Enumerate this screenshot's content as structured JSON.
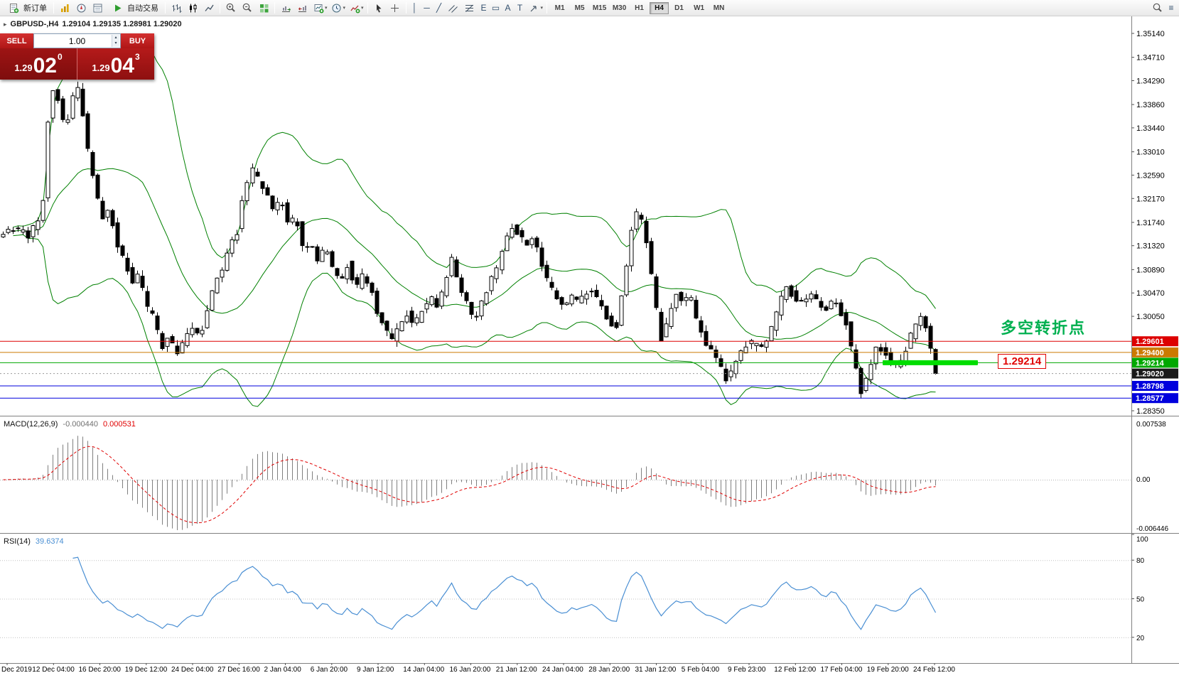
{
  "toolbar": {
    "new_order_label": "新订单",
    "auto_trading_label": "自动交易",
    "timeframes": [
      "M1",
      "M5",
      "M15",
      "M30",
      "H1",
      "H4",
      "D1",
      "W1",
      "MN"
    ],
    "active_timeframe": "H4"
  },
  "icons": {
    "vertical_line": "│",
    "horizontal_line": "─",
    "trendline": "╱",
    "elliott": "E",
    "text": "A",
    "label": "T",
    "shapes": "▭",
    "list": "≡",
    "caret": "▾",
    "spin_up": "▴",
    "spin_down": "▾",
    "chart_menu": "▸"
  },
  "trade_panel": {
    "sell_label": "SELL",
    "buy_label": "BUY",
    "volume": "1.00",
    "sell_price": {
      "small": "1.29",
      "big": "02",
      "sup": "0"
    },
    "buy_price": {
      "small": "1.29",
      "big": "04",
      "sup": "3"
    }
  },
  "chart_header": {
    "symbol": "GBPUSD-,H4",
    "ohlc": "1.29104 1.29135 1.28981 1.29020"
  },
  "chart_data": {
    "type": "candlestick",
    "symbol": "GBPUSD-",
    "timeframe": "H4",
    "ohlc_current": {
      "open": 1.29104,
      "high": 1.29135,
      "low": 1.28981,
      "close": 1.2902
    },
    "price_axis": {
      "ref_high": 1.3514,
      "ref_low": 1.2835,
      "ticks": [
        1.3514,
        1.3471,
        1.3429,
        1.3386,
        1.3344,
        1.3301,
        1.3259,
        1.3217,
        1.3174,
        1.3132,
        1.3089,
        1.3047,
        1.3005,
        1.2835
      ]
    },
    "time_axis": [
      "Dec 2019",
      "12 Dec 04:00",
      "16 Dec 20:00",
      "19 Dec 12:00",
      "24 Dec 04:00",
      "27 Dec 16:00",
      "2 Jan 04:00",
      "6 Jan 20:00",
      "9 Jan 12:00",
      "14 Jan 04:00",
      "16 Jan 20:00",
      "21 Jan 12:00",
      "24 Jan 04:00",
      "28 Jan 20:00",
      "31 Jan 12:00",
      "5 Feb 04:00",
      "9 Feb 23:00",
      "12 Feb 12:00",
      "17 Feb 04:00",
      "19 Feb 20:00",
      "24 Feb 12:00"
    ],
    "levels": [
      {
        "price": 1.29601,
        "label": "1.29601",
        "color": "#dd0000"
      },
      {
        "price": 1.294,
        "label": "1.29400",
        "color": "#cc7a00"
      },
      {
        "price": 1.29214,
        "label": "1.29214",
        "color": "#00a800"
      },
      {
        "price": 1.28798,
        "label": "1.28798",
        "color": "#0000dd"
      },
      {
        "price": 1.28577,
        "label": "1.28577",
        "color": "#0000dd"
      }
    ],
    "current_price": {
      "value": 1.2902,
      "label": "1.29020",
      "badge_color": "#1a1a1a"
    },
    "highlight_bar": {
      "price": 1.29214,
      "x_start_frac": 0.78,
      "x_end_frac": 0.864,
      "color": "#00dd00",
      "label": "1.29214",
      "label_color": "#e00000"
    },
    "annotation": {
      "text": "多空转折点",
      "color": "#00b050"
    },
    "candles": {
      "count": 188,
      "last_frac": 0.829,
      "up_fill": "#ffffff",
      "down_fill": "#000000",
      "stroke": "#000000"
    },
    "bollinger": {
      "period": 20,
      "deviation": 2,
      "color": "#008000"
    },
    "macd": {
      "name": "MACD(12,26,9)",
      "value_main": "-0.000440",
      "value_signal": "0.000531",
      "scale_top": "0.007538",
      "scale_zero": "0.00",
      "scale_bottom": "-0.006446",
      "hist_color": "#808080",
      "signal_color": "#e00000"
    },
    "rsi": {
      "name": "RSI(14)",
      "value": "39.6374",
      "color": "#4a8fd3",
      "scale": [
        100,
        80,
        50,
        20
      ],
      "level_lines": [
        80,
        50,
        20
      ]
    },
    "price_anchors": [
      [
        0.0,
        1.3145
      ],
      [
        0.013,
        1.3165
      ],
      [
        0.026,
        1.315
      ],
      [
        0.039,
        1.319
      ],
      [
        0.046,
        1.342
      ],
      [
        0.053,
        1.339
      ],
      [
        0.059,
        1.334
      ],
      [
        0.066,
        1.34
      ],
      [
        0.072,
        1.3415
      ],
      [
        0.079,
        1.331
      ],
      [
        0.086,
        1.323
      ],
      [
        0.092,
        1.318
      ],
      [
        0.099,
        1.32
      ],
      [
        0.105,
        1.313
      ],
      [
        0.112,
        1.311
      ],
      [
        0.118,
        1.306
      ],
      [
        0.125,
        1.308
      ],
      [
        0.132,
        1.302
      ],
      [
        0.138,
        1.3
      ],
      [
        0.145,
        1.295
      ],
      [
        0.151,
        1.2972
      ],
      [
        0.158,
        1.294
      ],
      [
        0.164,
        1.296
      ],
      [
        0.171,
        1.299
      ],
      [
        0.178,
        1.297
      ],
      [
        0.184,
        1.3
      ],
      [
        0.191,
        1.306
      ],
      [
        0.197,
        1.308
      ],
      [
        0.204,
        1.313
      ],
      [
        0.211,
        1.315
      ],
      [
        0.217,
        1.322
      ],
      [
        0.224,
        1.327
      ],
      [
        0.23,
        1.325
      ],
      [
        0.237,
        1.323
      ],
      [
        0.243,
        1.319
      ],
      [
        0.25,
        1.3215
      ],
      [
        0.257,
        1.317
      ],
      [
        0.263,
        1.3185
      ],
      [
        0.27,
        1.312
      ],
      [
        0.276,
        1.3145
      ],
      [
        0.283,
        1.31
      ],
      [
        0.289,
        1.313
      ],
      [
        0.296,
        1.309
      ],
      [
        0.303,
        1.307
      ],
      [
        0.309,
        1.31
      ],
      [
        0.316,
        1.305
      ],
      [
        0.322,
        1.308
      ],
      [
        0.329,
        1.306
      ],
      [
        0.336,
        1.3
      ],
      [
        0.342,
        1.2985
      ],
      [
        0.349,
        1.296
      ],
      [
        0.355,
        1.299
      ],
      [
        0.362,
        1.301
      ],
      [
        0.368,
        1.299
      ],
      [
        0.375,
        1.3015
      ],
      [
        0.382,
        1.304
      ],
      [
        0.388,
        1.302
      ],
      [
        0.395,
        1.306
      ],
      [
        0.401,
        1.311
      ],
      [
        0.408,
        1.305
      ],
      [
        0.414,
        1.303
      ],
      [
        0.421,
        1.2995
      ],
      [
        0.428,
        1.303
      ],
      [
        0.434,
        1.306
      ],
      [
        0.441,
        1.309
      ],
      [
        0.447,
        1.313
      ],
      [
        0.454,
        1.3165
      ],
      [
        0.461,
        1.315
      ],
      [
        0.467,
        1.313
      ],
      [
        0.474,
        1.3145
      ],
      [
        0.48,
        1.31
      ],
      [
        0.487,
        1.306
      ],
      [
        0.493,
        1.304
      ],
      [
        0.5,
        1.302
      ],
      [
        0.507,
        1.3045
      ],
      [
        0.513,
        1.303
      ],
      [
        0.52,
        1.305
      ],
      [
        0.526,
        1.3055
      ],
      [
        0.533,
        1.302
      ],
      [
        0.539,
        1.3
      ],
      [
        0.546,
        1.298
      ],
      [
        0.553,
        1.306
      ],
      [
        0.559,
        1.315
      ],
      [
        0.566,
        1.32
      ],
      [
        0.572,
        1.315
      ],
      [
        0.579,
        1.306
      ],
      [
        0.586,
        1.296
      ],
      [
        0.592,
        1.3
      ],
      [
        0.599,
        1.305
      ],
      [
        0.605,
        1.303
      ],
      [
        0.612,
        1.3045
      ],
      [
        0.618,
        1.299
      ],
      [
        0.625,
        1.296
      ],
      [
        0.632,
        1.294
      ],
      [
        0.638,
        1.2915
      ],
      [
        0.645,
        1.289
      ],
      [
        0.651,
        1.292
      ],
      [
        0.658,
        1.2945
      ],
      [
        0.664,
        1.296
      ],
      [
        0.671,
        1.295
      ],
      [
        0.678,
        1.2955
      ],
      [
        0.684,
        1.2985
      ],
      [
        0.691,
        1.3035
      ],
      [
        0.697,
        1.3055
      ],
      [
        0.704,
        1.304
      ],
      [
        0.711,
        1.303
      ],
      [
        0.717,
        1.3045
      ],
      [
        0.724,
        1.303
      ],
      [
        0.73,
        1.301
      ],
      [
        0.737,
        1.303
      ],
      [
        0.743,
        1.302
      ],
      [
        0.75,
        1.299
      ],
      [
        0.757,
        1.292
      ],
      [
        0.763,
        1.287
      ],
      [
        0.77,
        1.29
      ],
      [
        0.776,
        1.295
      ],
      [
        0.783,
        1.294
      ],
      [
        0.789,
        1.2925
      ],
      [
        0.796,
        1.291
      ],
      [
        0.803,
        1.295
      ],
      [
        0.809,
        1.298
      ],
      [
        0.816,
        1.3
      ],
      [
        0.822,
        1.2985
      ],
      [
        0.826,
        1.293
      ],
      [
        0.829,
        1.2902
      ]
    ]
  }
}
